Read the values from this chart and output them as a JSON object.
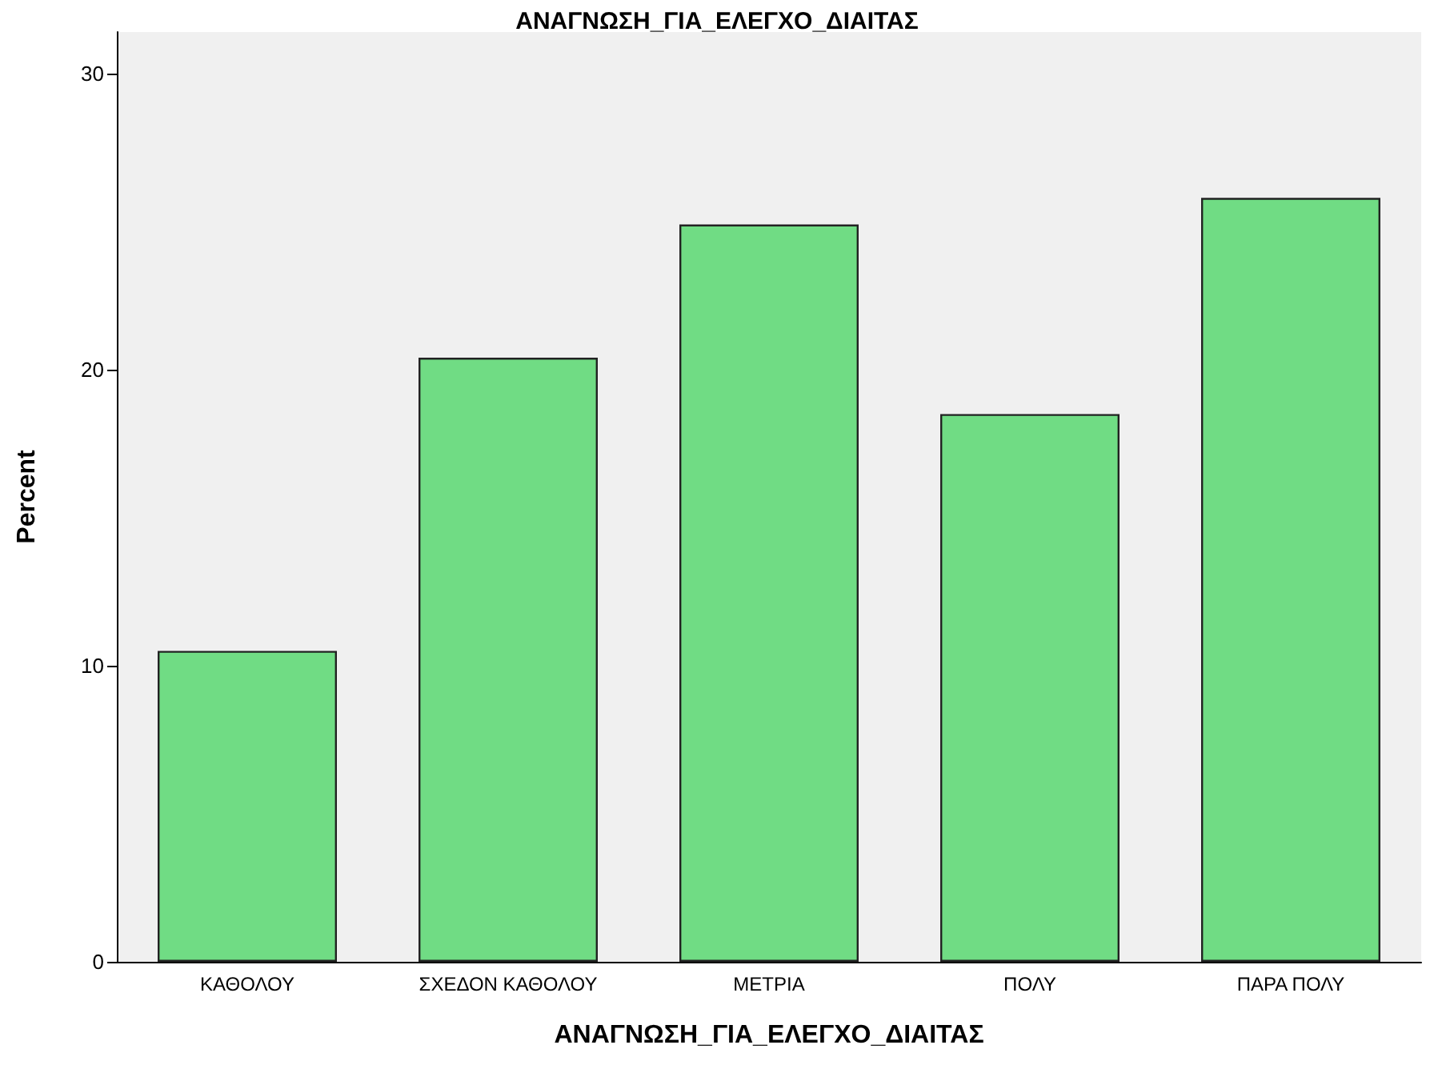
{
  "chart_data": {
    "type": "bar",
    "title": "ΑΝΑΓΝΩΣΗ_ΓΙΑ_ΕΛΕΓΧΟ_ΔΙΑΙΤΑΣ",
    "xlabel": "ΑΝΑΓΝΩΣΗ_ΓΙΑ_ΕΛΕΓΧΟ_ΔΙΑΙΤΑΣ",
    "ylabel": "Percent",
    "categories": [
      "ΚΑΘΟΛΟΥ",
      "ΣΧΕΔΟΝ ΚΑΘΟΛΟΥ",
      "ΜΕΤΡΙΑ",
      "ΠΟΛΥ",
      "ΠΑΡΑ ΠΟΛΥ"
    ],
    "values": [
      10.5,
      20.4,
      24.9,
      18.5,
      25.8
    ],
    "color": "#70dc84",
    "ylim": [
      0,
      31.4
    ],
    "yticks": [
      0,
      10,
      20,
      30
    ],
    "grid": false
  }
}
